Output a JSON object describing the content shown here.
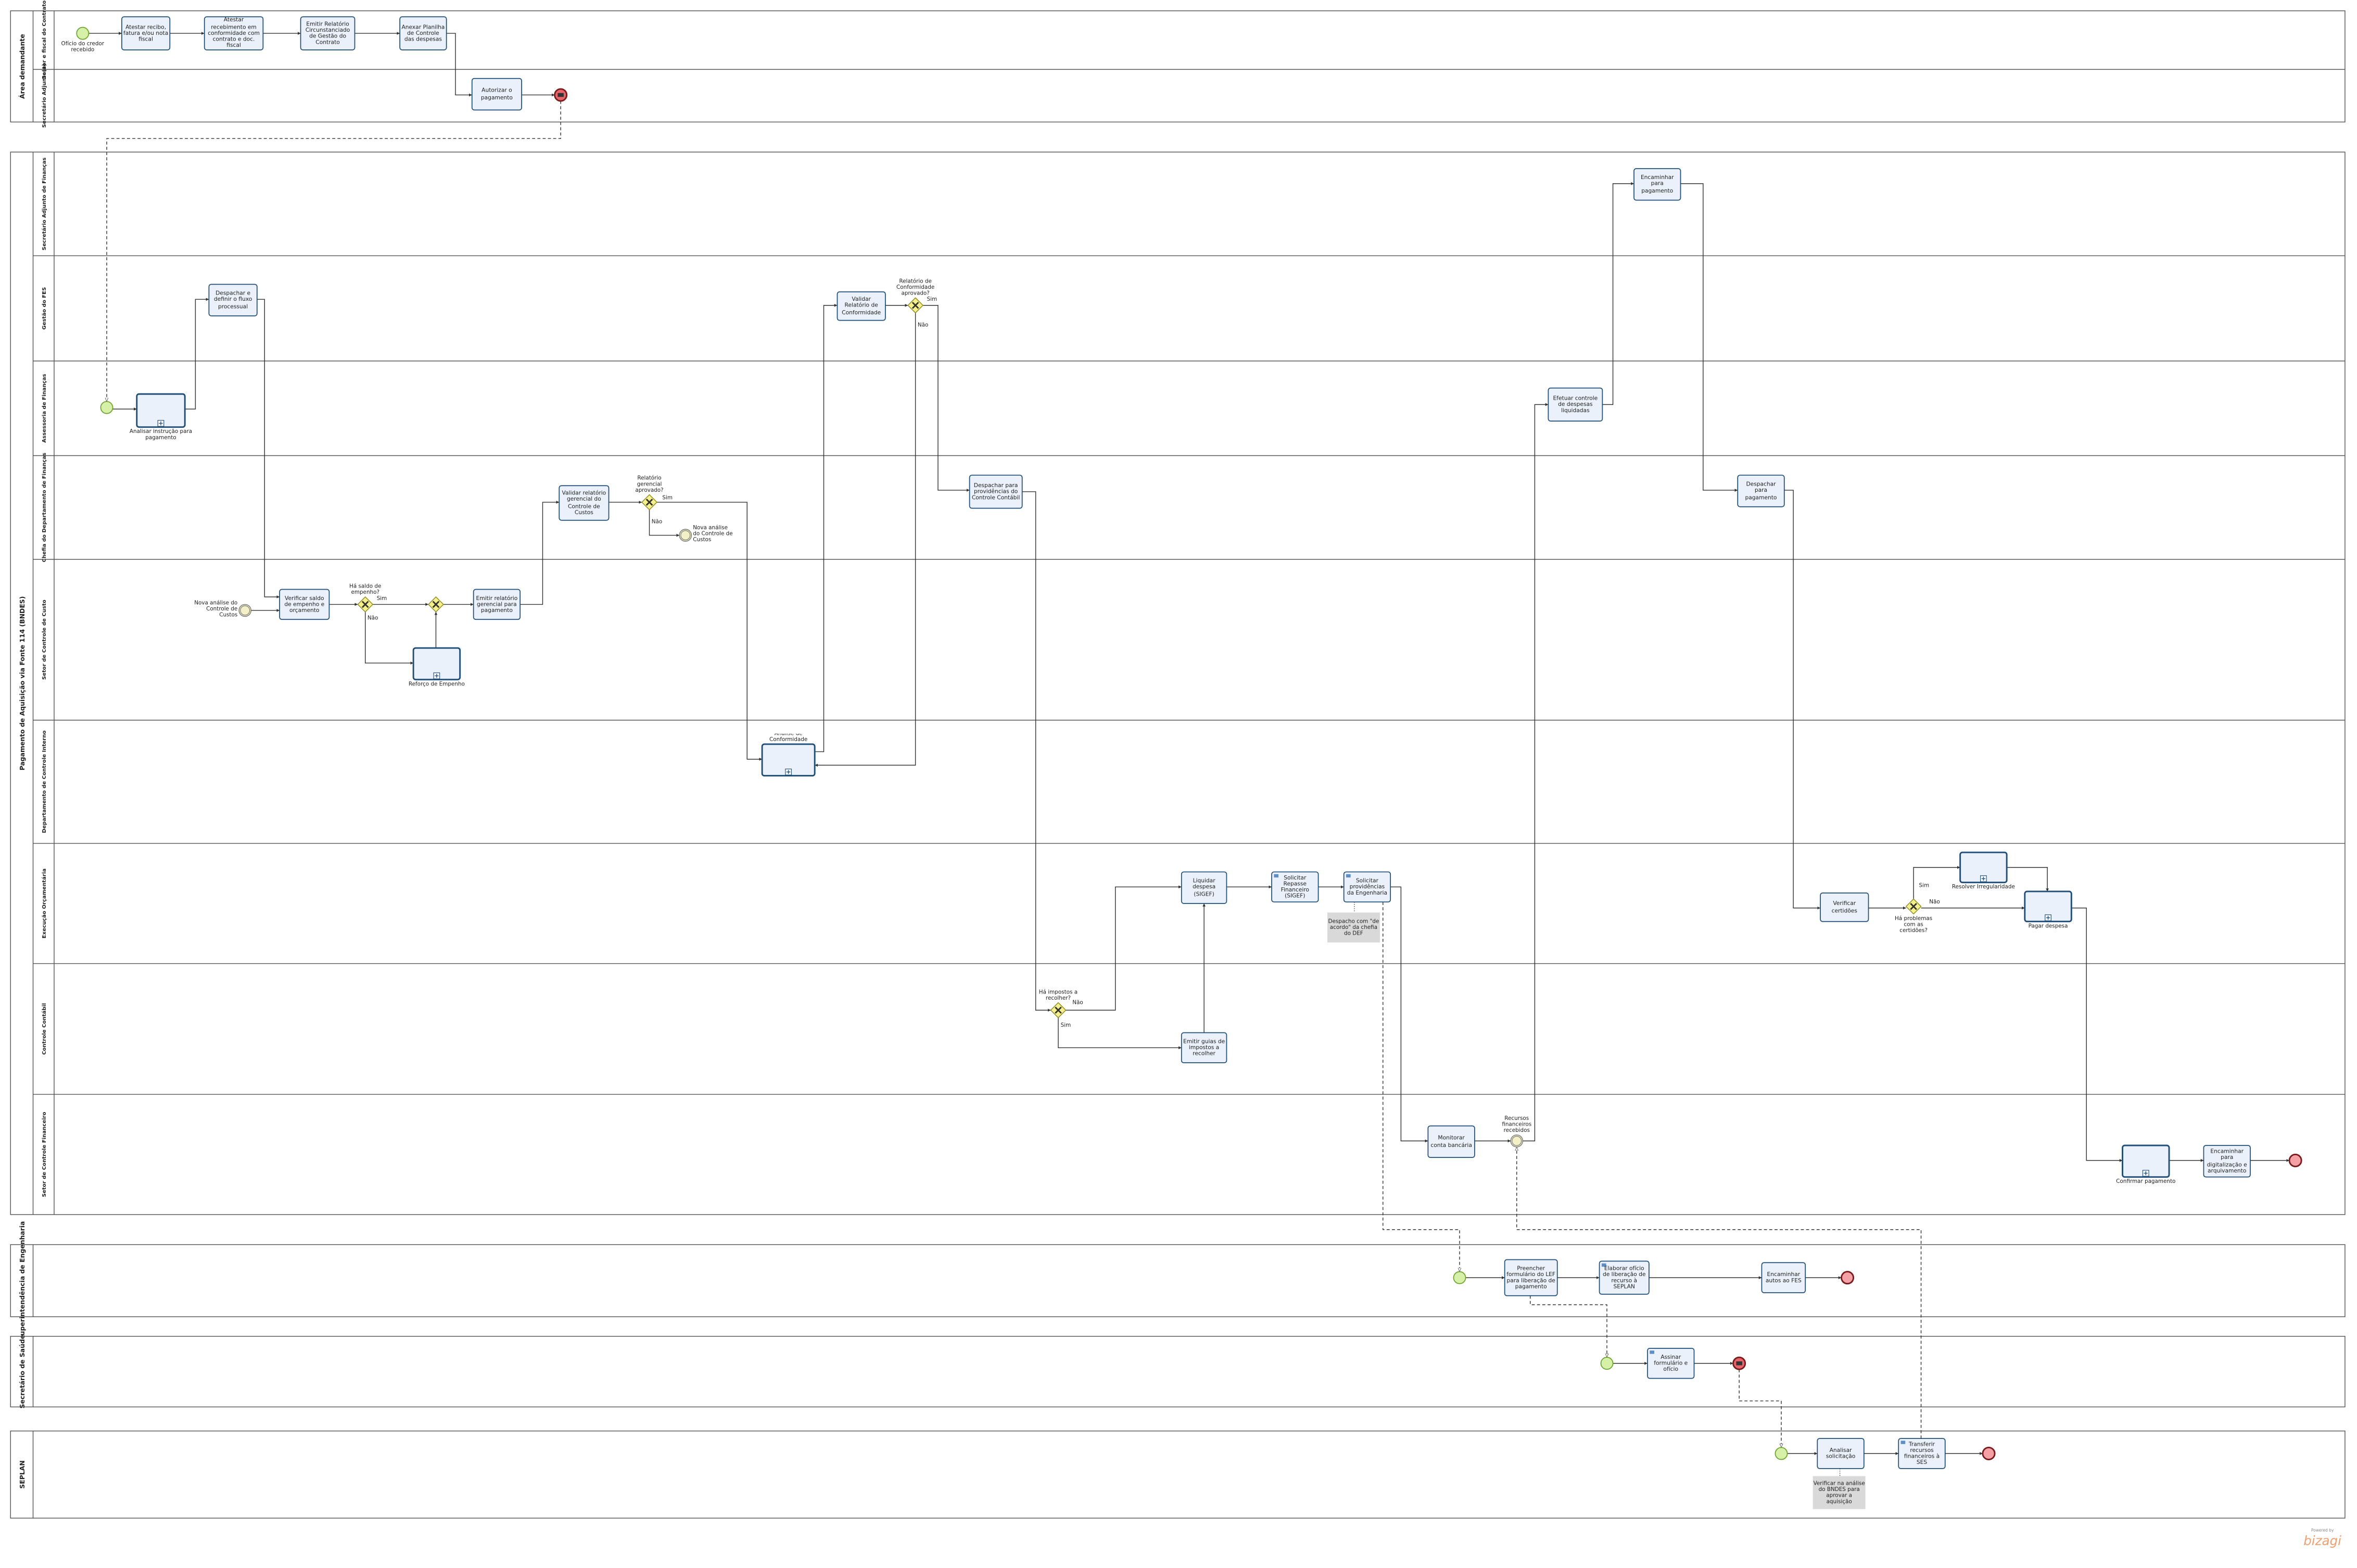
{
  "pools": [
    {
      "name": "Área demandante",
      "lanes": [
        "Gestor e fiscal do Contrato",
        "Secretário Adjunto(a)"
      ]
    },
    {
      "name": "Pagamento de Aquisição via Fonte 114 (BNDES)",
      "lanes": [
        "Secretário Adjunto de Finanças",
        "Gestão do FES",
        "Assessoria de Finanças",
        "Chefia do Departamento de Finanças",
        "Setor de Controle de Custo",
        "Departamento de Controle Interno",
        "Execução Orçamentária",
        "Controle Contábil",
        "Setor de Controle Financeiro"
      ]
    },
    {
      "name": "Superintendência de Engenharia",
      "lanes": []
    },
    {
      "name": "Secretário de Saúde",
      "lanes": []
    },
    {
      "name": "SEPLAN",
      "lanes": []
    }
  ],
  "nodes": [
    {
      "type": "event",
      "label": "Ofício do credor recebido"
    },
    {
      "type": "task",
      "label": "Atestar recibo, fatura e/ou nota fiscal"
    },
    {
      "type": "task",
      "label": "Atestar recebimento em conformidade com contrato e doc. fiscal"
    },
    {
      "type": "task",
      "label": "Emitir Relatório Circunstanciado de Gestão do Contrato"
    },
    {
      "type": "task",
      "label": "Anexar Planilha de Controle das despesas"
    },
    {
      "type": "task",
      "label": "Autorizar o pagamento"
    },
    {
      "type": "subprocess",
      "label": "Analisar instrução para pagamento"
    },
    {
      "type": "task",
      "label": "Despachar e definir o fluxo processual"
    },
    {
      "type": "task",
      "label": "Validar Relatório de Conformidade"
    },
    {
      "type": "gateway",
      "label": "Relatório de Conformidade aprovado?"
    },
    {
      "type": "task",
      "label": "Encaminhar para pagamento"
    },
    {
      "type": "task",
      "label": "Efetuar controle de despesas liquidadas"
    },
    {
      "type": "task",
      "label": "Validar relatório gerencial do Controle de Custos"
    },
    {
      "type": "gateway",
      "label": "Relatório gerencial aprovado?"
    },
    {
      "type": "event",
      "label": "Nova análise do Controle de Custos"
    },
    {
      "type": "task",
      "label": "Despachar para providências do Controle Contábil"
    },
    {
      "type": "task",
      "label": "Despachar para pagamento"
    },
    {
      "type": "event",
      "label": "Nova análise do Controle de Custos"
    },
    {
      "type": "task",
      "label": "Verificar saldo de empenho e orçamento"
    },
    {
      "type": "gateway",
      "label": "Há saldo de empenho?"
    },
    {
      "type": "task",
      "label": "Emitir relatório gerencial para pagamento"
    },
    {
      "type": "subprocess",
      "label": "Reforço de Empenho"
    },
    {
      "type": "subprocess",
      "label": "Análise de Conformidade"
    },
    {
      "type": "task",
      "label": "Liquidar despesa (SIGEF)"
    },
    {
      "type": "task",
      "label": "Solicitar Repasse Financeiro (SIGEF)"
    },
    {
      "type": "task",
      "label": "Solicitar providências da Engenharia"
    },
    {
      "type": "task",
      "label": "Verificar certidões"
    },
    {
      "type": "gateway",
      "label": "Há problemas com as certidões?"
    },
    {
      "type": "subprocess",
      "label": "Resolver Irregularidade"
    },
    {
      "type": "subprocess",
      "label": "Pagar despesa"
    },
    {
      "type": "gateway",
      "label": "Há impostos a recolher?"
    },
    {
      "type": "task",
      "label": "Emitir guias de impostos a recolher"
    },
    {
      "type": "task",
      "label": "Monitorar conta bancária"
    },
    {
      "type": "event",
      "label": "Recursos financeiros recebidos"
    },
    {
      "type": "subprocess",
      "label": "Confirmar pagamento"
    },
    {
      "type": "task",
      "label": "Encaminhar para digitalização e arquivamento"
    },
    {
      "type": "task",
      "label": "Preencher formulário do LEF para liberação de pagamento"
    },
    {
      "type": "task",
      "label": "Elaborar ofício de liberação de recurso à SEPLAN"
    },
    {
      "type": "task",
      "label": "Encaminhar autos ao FES"
    },
    {
      "type": "task",
      "label": "Assinar formulário e ofício"
    },
    {
      "type": "task",
      "label": "Analisar solicitação"
    },
    {
      "type": "task",
      "label": "Transferir recursos financeiros à SES"
    }
  ],
  "flow_labels": [
    "Sim",
    "Não",
    "Sim",
    "Não",
    "Sim",
    "Não",
    "Sim",
    "Não",
    "Não",
    "Sim"
  ],
  "annotations": [
    "Despacho com \"de acordo\" da chefia do DEF",
    "Verificar na análise do BNDES para aprovar a aquisição"
  ],
  "footer": {
    "powered_by": "Powered by",
    "brand": "bizagi"
  }
}
